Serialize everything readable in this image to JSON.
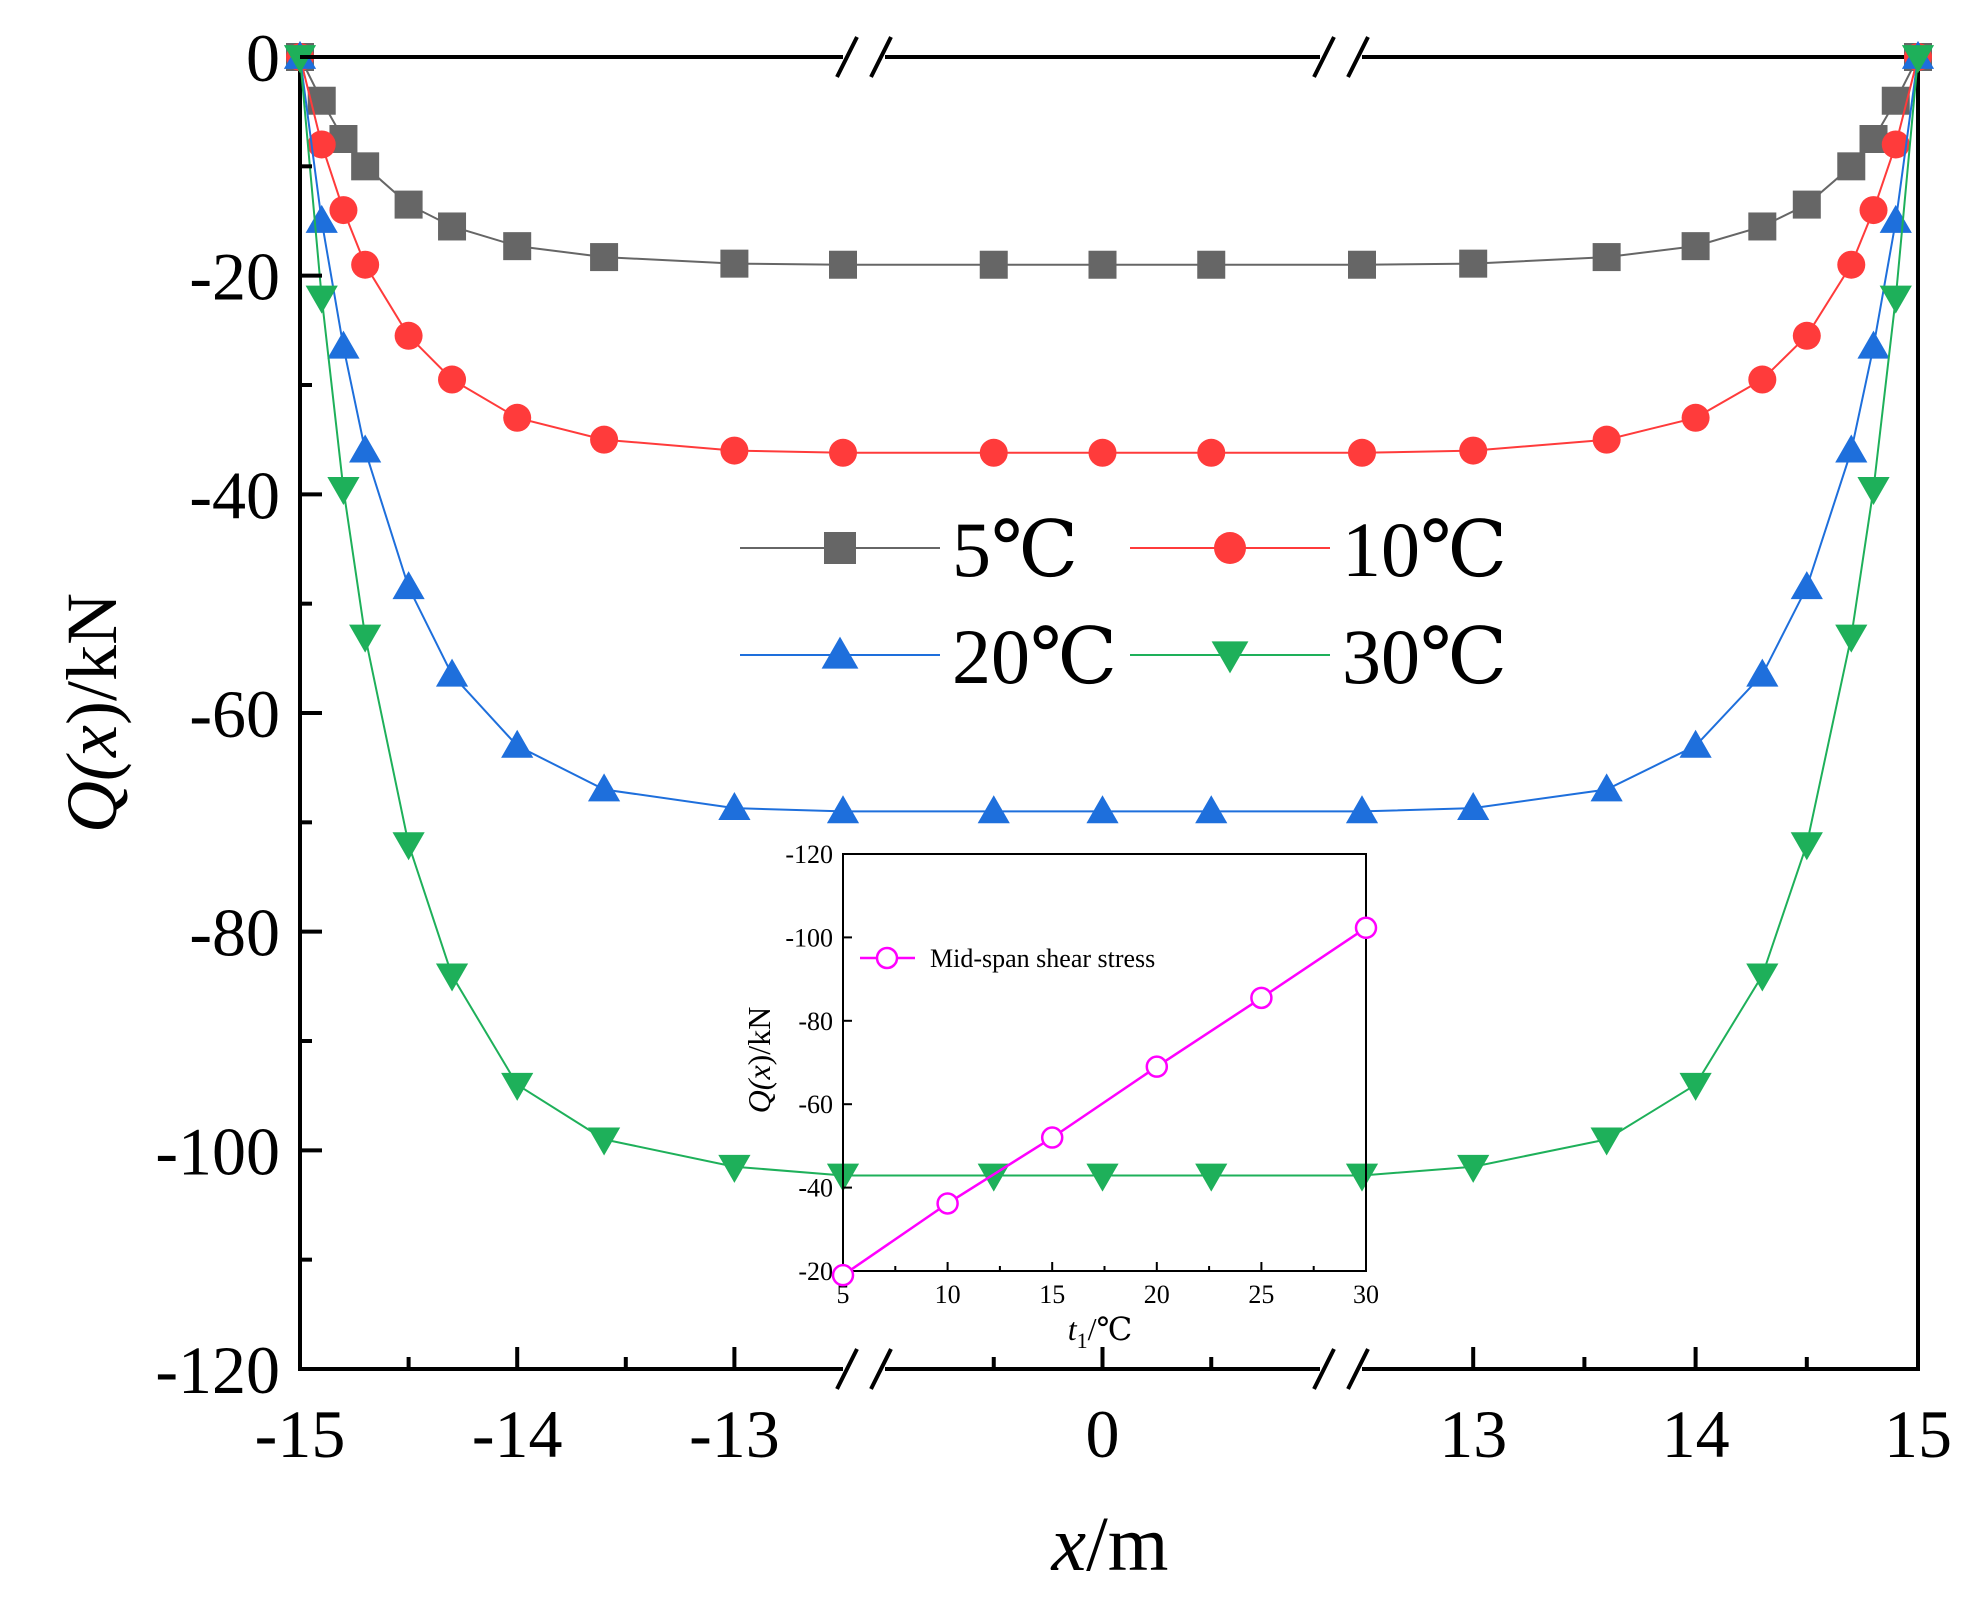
{
  "chart_data": [
    {
      "type": "line",
      "xlabel_italic": "x",
      "xlabel_unit": "/m",
      "ylabel_func": "Q(",
      "ylabel_var": "x",
      "ylabel_unit": ")/kN",
      "ylim": [
        -120,
        0
      ],
      "yticks": [
        0,
        -20,
        -40,
        -60,
        -80,
        -100,
        -120
      ],
      "ytick_labels": [
        "0",
        "-20",
        "-40",
        "-60",
        "-80",
        "-100",
        "-120"
      ],
      "x_segments": [
        {
          "range": [
            -15,
            -12.5
          ],
          "ticks": [
            -15,
            -14,
            -13
          ],
          "tick_labels": [
            "-15",
            "-14",
            "-13"
          ]
        },
        {
          "range": [
            -2.5,
            2.5
          ],
          "ticks": [
            0
          ],
          "tick_labels": [
            "0"
          ]
        },
        {
          "range": [
            12.5,
            15
          ],
          "ticks": [
            13,
            14,
            15
          ],
          "tick_labels": [
            "13",
            "14",
            "15"
          ]
        }
      ],
      "axis_break": true,
      "legend_position": "center",
      "series": [
        {
          "name": "5℃",
          "color": "#666666",
          "marker": "square",
          "x": [
            -15,
            -14.9,
            -14.8,
            -14.7,
            -14.5,
            -14.3,
            -14,
            -13.6,
            -13,
            -12.5,
            -1.25,
            0,
            1.25,
            12.5,
            13,
            13.6,
            14,
            14.3,
            14.5,
            14.7,
            14.8,
            14.9,
            15
          ],
          "y": [
            0,
            -4,
            -7.5,
            -10,
            -13.5,
            -15.5,
            -17.3,
            -18.3,
            -18.9,
            -19,
            -19,
            -19,
            -19,
            -19,
            -18.9,
            -18.3,
            -17.3,
            -15.5,
            -13.5,
            -10,
            -7.5,
            -4,
            0
          ]
        },
        {
          "name": "10℃",
          "color": "#ff3b3b",
          "marker": "circle",
          "x": [
            -15,
            -14.9,
            -14.8,
            -14.7,
            -14.5,
            -14.3,
            -14,
            -13.6,
            -13,
            -12.5,
            -1.25,
            0,
            1.25,
            12.5,
            13,
            13.6,
            14,
            14.3,
            14.5,
            14.7,
            14.8,
            14.9,
            15
          ],
          "y": [
            0,
            -8,
            -14,
            -19,
            -25.5,
            -29.5,
            -33,
            -35,
            -36,
            -36.2,
            -36.2,
            -36.2,
            -36.2,
            -36.2,
            -36,
            -35,
            -33,
            -29.5,
            -25.5,
            -19,
            -14,
            -8,
            0
          ]
        },
        {
          "name": "20℃",
          "color": "#1e6fdc",
          "marker": "triangle-up",
          "x": [
            -15,
            -14.9,
            -14.8,
            -14.7,
            -14.5,
            -14.3,
            -14,
            -13.6,
            -13,
            -12.5,
            -1.25,
            0,
            1.25,
            12.5,
            13,
            13.6,
            14,
            14.3,
            14.5,
            14.7,
            14.8,
            14.9,
            15
          ],
          "y": [
            0,
            -15,
            -26.5,
            -36,
            -48.5,
            -56.5,
            -63,
            -67,
            -68.7,
            -69,
            -69,
            -69,
            -69,
            -69,
            -68.7,
            -67,
            -63,
            -56.5,
            -48.5,
            -36,
            -26.5,
            -15,
            0
          ]
        },
        {
          "name": "30℃",
          "color": "#1eb05a",
          "marker": "triangle-down",
          "x": [
            -15,
            -14.9,
            -14.8,
            -14.7,
            -14.5,
            -14.3,
            -14,
            -13.6,
            -13,
            -12.5,
            -1.25,
            0,
            1.25,
            12.5,
            13,
            13.6,
            14,
            14.3,
            14.5,
            14.7,
            14.8,
            14.9,
            15
          ],
          "y": [
            0,
            -22,
            -39.5,
            -53,
            -72,
            -84,
            -94,
            -99,
            -101.5,
            -102.3,
            -102.3,
            -102.3,
            -102.3,
            -102.3,
            -101.5,
            -99,
            -94,
            -84,
            -72,
            -53,
            -39.5,
            -22,
            0
          ]
        }
      ]
    },
    {
      "type": "line",
      "xlabel_var": "t",
      "xlabel_sub": "1",
      "xlabel_unit": "/℃",
      "ylabel_func": "Q(",
      "ylabel_var": "x",
      "ylabel_unit": ")/kN",
      "xlim": [
        5,
        30
      ],
      "xticks": [
        5,
        10,
        15,
        20,
        25,
        30
      ],
      "xtick_labels": [
        "5",
        "10",
        "15",
        "20",
        "25",
        "30"
      ],
      "ylim": [
        -120,
        -20
      ],
      "yticks": [
        -120,
        -100,
        -80,
        -60,
        -40,
        -20
      ],
      "ytick_labels": [
        "-120",
        "-100",
        "-80",
        "-60",
        "-40",
        "-20"
      ],
      "y_axis_inverted": true,
      "legend_position": "top-left",
      "series": [
        {
          "name": "Mid-span shear stress",
          "color": "#ff00ff",
          "marker": "open-circle",
          "x": [
            5,
            10,
            15,
            20,
            25,
            30
          ],
          "y": [
            -19,
            -36.2,
            -52,
            -69,
            -85.5,
            -102.3
          ]
        }
      ]
    }
  ]
}
